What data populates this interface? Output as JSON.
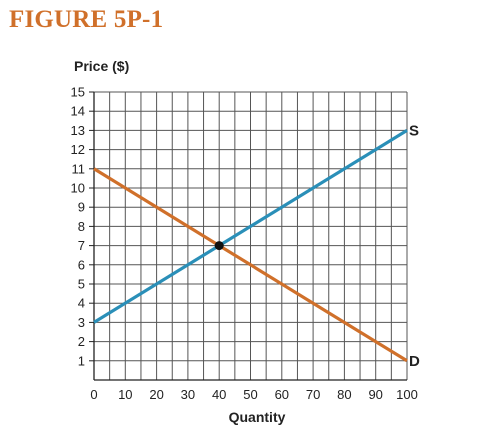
{
  "figure_label": "FIGURE 5P-1",
  "chart_data": {
    "type": "line",
    "ylabel": "Price ($)",
    "xlabel": "Quantity",
    "xlim": [
      0,
      100
    ],
    "ylim": [
      0,
      15
    ],
    "x_ticks": [
      0,
      10,
      20,
      30,
      40,
      50,
      60,
      70,
      80,
      90,
      100
    ],
    "y_ticks": [
      1,
      2,
      3,
      4,
      5,
      6,
      7,
      8,
      9,
      10,
      11,
      12,
      13,
      14,
      15
    ],
    "grid": true,
    "series": [
      {
        "name": "S",
        "x": [
          0,
          100
        ],
        "y": [
          3,
          13
        ],
        "color": "#2a8fb8"
      },
      {
        "name": "D",
        "x": [
          0,
          100
        ],
        "y": [
          11,
          1
        ],
        "color": "#d0702a"
      }
    ],
    "annotations": [
      {
        "type": "point",
        "x": 40,
        "y": 7,
        "color": "#111111"
      }
    ]
  }
}
